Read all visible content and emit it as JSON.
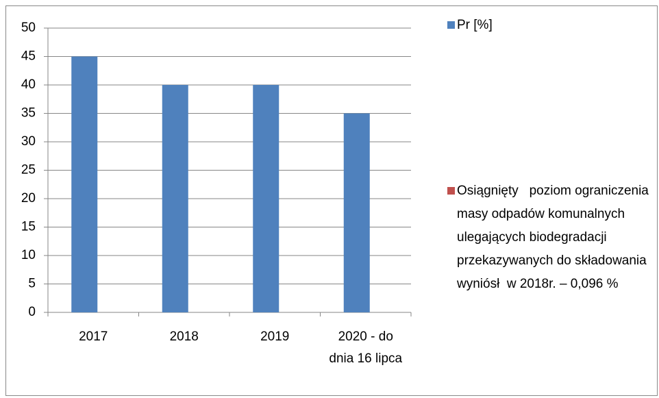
{
  "chart_data": {
    "type": "bar",
    "categories": [
      "2017",
      "2018",
      "2019",
      "2020 - do dnia 16 lipca"
    ],
    "series": [
      {
        "name": "Pr [%]",
        "color": "#4f81bd",
        "values": [
          45,
          40,
          40,
          35
        ]
      },
      {
        "name": "Osiągnięty   poziom ograniczenia masy odpadów komunalnych ulegających biodegradacji przekazywanych do składowania wyniósł  w 2018r. – 0,096 %",
        "color": "#c0504d",
        "values": [
          null,
          null,
          null,
          null
        ]
      }
    ],
    "ylim": [
      0,
      50
    ],
    "yticks": [
      0,
      5,
      10,
      15,
      20,
      25,
      30,
      35,
      40,
      45,
      50
    ],
    "grid": true,
    "legend": "right"
  }
}
